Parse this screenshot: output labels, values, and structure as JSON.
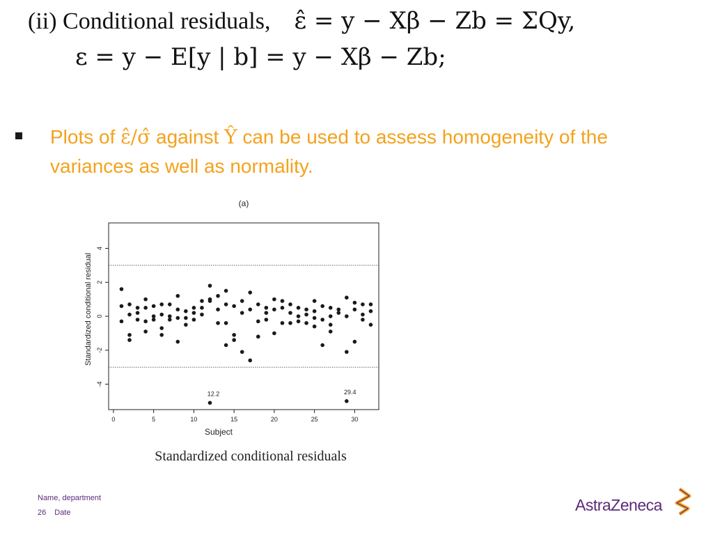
{
  "formula": {
    "line1_prefix": "(ii)  Conditional    residuals,",
    "line1_math": "ε̂ = y − Xβ − Zb = ΣQy,",
    "line2_math": "ε = y − E[y | b] = y − Xβ − Zb;"
  },
  "bullet": {
    "part1": "Plots of ",
    "ratio": "ε̂/σ̂",
    "part2": " against ",
    "yhat": "Ŷ",
    "part3": " can be used to assess homogeneity of the variances as well as normality."
  },
  "chart_data": {
    "type": "scatter",
    "title": "(a)",
    "xlabel": "Subject",
    "ylabel": "Standardized conditional residual",
    "xlim": [
      0,
      32
    ],
    "ylim": [
      -5.5,
      5.5
    ],
    "xticks": [
      "0",
      "5",
      "10",
      "15",
      "20",
      "25",
      "30"
    ],
    "yticks": [
      "-4",
      "-2",
      "0",
      "2",
      "4"
    ],
    "reference_lines": [
      3,
      -3
    ],
    "annotations": [
      {
        "text": "12.2",
        "x": 12,
        "y": -5.1
      },
      {
        "text": "29.4",
        "x": 29,
        "y": -5.0
      }
    ],
    "points": [
      [
        1,
        1.6
      ],
      [
        1,
        0.6
      ],
      [
        1,
        -0.3
      ],
      [
        2,
        0.7
      ],
      [
        2,
        0.1
      ],
      [
        2,
        -1.1
      ],
      [
        2,
        -1.4
      ],
      [
        3,
        0.5
      ],
      [
        3,
        0.2
      ],
      [
        3,
        -0.2
      ],
      [
        4,
        1.0
      ],
      [
        4,
        0.5
      ],
      [
        4,
        -0.3
      ],
      [
        4,
        -0.9
      ],
      [
        5,
        0.6
      ],
      [
        5,
        0.0
      ],
      [
        5,
        -0.2
      ],
      [
        6,
        0.7
      ],
      [
        6,
        0.1
      ],
      [
        6,
        -0.7
      ],
      [
        6,
        -1.1
      ],
      [
        7,
        0.7
      ],
      [
        7,
        0.0
      ],
      [
        7,
        -0.2
      ],
      [
        8,
        1.2
      ],
      [
        8,
        0.4
      ],
      [
        8,
        -0.1
      ],
      [
        8,
        -1.5
      ],
      [
        9,
        0.3
      ],
      [
        9,
        -0.1
      ],
      [
        9,
        -0.5
      ],
      [
        10,
        0.5
      ],
      [
        10,
        0.2
      ],
      [
        10,
        -0.2
      ],
      [
        11,
        0.9
      ],
      [
        11,
        0.5
      ],
      [
        11,
        0.1
      ],
      [
        12,
        1.8
      ],
      [
        12,
        1.0
      ],
      [
        12,
        0.9
      ],
      [
        12,
        -5.1
      ],
      [
        13,
        1.2
      ],
      [
        13,
        0.4
      ],
      [
        13,
        -0.4
      ],
      [
        14,
        1.5
      ],
      [
        14,
        0.7
      ],
      [
        14,
        -0.4
      ],
      [
        14,
        -1.7
      ],
      [
        15,
        0.6
      ],
      [
        15,
        -1.1
      ],
      [
        15,
        -1.4
      ],
      [
        16,
        0.9
      ],
      [
        16,
        0.2
      ],
      [
        16,
        -2.1
      ],
      [
        17,
        1.4
      ],
      [
        17,
        0.4
      ],
      [
        17,
        -2.6
      ],
      [
        18,
        0.7
      ],
      [
        18,
        -0.3
      ],
      [
        18,
        -1.2
      ],
      [
        19,
        0.5
      ],
      [
        19,
        0.2
      ],
      [
        19,
        -0.2
      ],
      [
        20,
        1.0
      ],
      [
        20,
        0.4
      ],
      [
        20,
        -1.0
      ],
      [
        21,
        0.9
      ],
      [
        21,
        0.5
      ],
      [
        21,
        -0.4
      ],
      [
        22,
        0.7
      ],
      [
        22,
        0.2
      ],
      [
        22,
        -0.4
      ],
      [
        23,
        0.5
      ],
      [
        23,
        0.0
      ],
      [
        23,
        -0.3
      ],
      [
        24,
        0.4
      ],
      [
        24,
        0.1
      ],
      [
        24,
        -0.4
      ],
      [
        25,
        0.9
      ],
      [
        25,
        0.3
      ],
      [
        25,
        -0.1
      ],
      [
        25,
        -0.6
      ],
      [
        26,
        0.6
      ],
      [
        26,
        -0.2
      ],
      [
        26,
        -1.7
      ],
      [
        27,
        0.5
      ],
      [
        27,
        0.0
      ],
      [
        27,
        -0.5
      ],
      [
        27,
        -0.9
      ],
      [
        28,
        0.4
      ],
      [
        28,
        0.2
      ],
      [
        29,
        1.1
      ],
      [
        29,
        0.0
      ],
      [
        29,
        -2.1
      ],
      [
        29,
        -5.0
      ],
      [
        30,
        0.8
      ],
      [
        30,
        0.4
      ],
      [
        30,
        -1.5
      ],
      [
        31,
        0.7
      ],
      [
        31,
        0.1
      ],
      [
        31,
        -0.2
      ],
      [
        32,
        0.7
      ],
      [
        32,
        0.3
      ],
      [
        32,
        -0.5
      ]
    ]
  },
  "caption": "Standardized conditional residuals",
  "footer": {
    "name": "Name, department",
    "page": "26",
    "date": "Date"
  },
  "logo": {
    "text": "AstraZeneca",
    "color": "#5b2a7a",
    "mark_color": "#f4a21c"
  }
}
